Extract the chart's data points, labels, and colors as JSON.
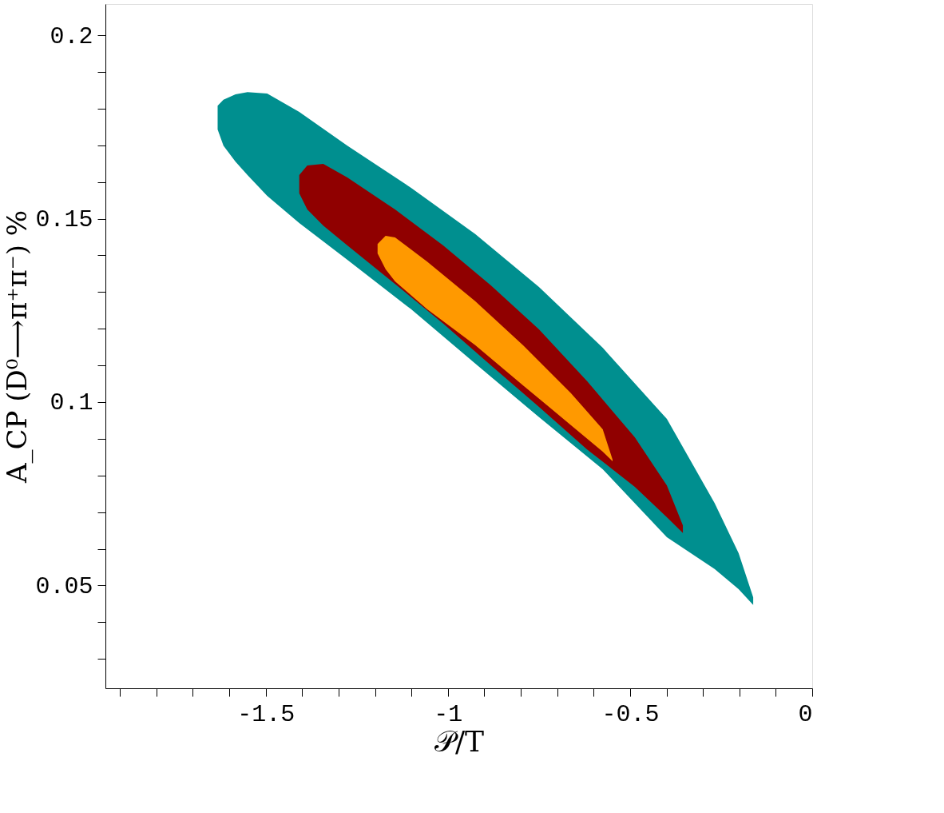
{
  "chart_data": {
    "type": "area",
    "xlabel": "𝒫/T",
    "ylabel": "A_CP (D⁰⟶π⁺π⁻) %",
    "xlim": [
      -1.94,
      0
    ],
    "ylim": [
      0.022,
      0.2085
    ],
    "xticks": [
      {
        "value": -1.9,
        "label": null
      },
      {
        "value": -1.8,
        "label": null
      },
      {
        "value": -1.7,
        "label": null
      },
      {
        "value": -1.6,
        "label": null
      },
      -1.5,
      {
        "value": -1.4,
        "label": null
      },
      {
        "value": -1.3,
        "label": null
      },
      {
        "value": -1.2,
        "label": null
      },
      {
        "value": -1.1,
        "label": null
      },
      -1,
      {
        "value": -0.9,
        "label": null
      },
      {
        "value": -0.8,
        "label": null
      },
      {
        "value": -0.7,
        "label": null
      },
      {
        "value": -0.6,
        "label": null
      },
      -0.5,
      {
        "value": -0.4,
        "label": null
      },
      {
        "value": -0.3,
        "label": null
      },
      {
        "value": -0.2,
        "label": null
      },
      {
        "value": -0.1,
        "label": null
      },
      0
    ],
    "yticks": [
      {
        "value": 0.03,
        "label": null
      },
      {
        "value": 0.04,
        "label": null
      },
      0.05,
      {
        "value": 0.06,
        "label": null
      },
      {
        "value": 0.07,
        "label": null
      },
      {
        "value": 0.08,
        "label": null
      },
      {
        "value": 0.09,
        "label": null
      },
      0.1,
      {
        "value": 0.11,
        "label": null
      },
      {
        "value": 0.12,
        "label": null
      },
      {
        "value": 0.13,
        "label": null
      },
      {
        "value": 0.14,
        "label": null
      },
      0.15,
      {
        "value": 0.16,
        "label": null
      },
      {
        "value": 0.17,
        "label": null
      },
      {
        "value": 0.18,
        "label": null
      },
      {
        "value": 0.19,
        "label": null
      },
      0.2
    ],
    "grid": false,
    "legend": false,
    "series": [
      {
        "color": "#008f8f",
        "x": [
          -1.632,
          -1.616,
          -1.583,
          -1.55,
          -1.496,
          -1.408,
          -1.276,
          -1.101,
          -0.925,
          -0.75,
          -0.575,
          -0.399,
          -0.268,
          -0.202,
          -0.162,
          -0.162,
          -0.202,
          -0.268,
          -0.399,
          -0.575,
          -0.75,
          -0.925,
          -1.101,
          -1.276,
          -1.408,
          -1.496,
          -1.55,
          -1.583,
          -1.616,
          -1.632
        ],
        "values": [
          0.1808,
          0.1824,
          0.1839,
          0.1845,
          0.1841,
          0.1791,
          0.1699,
          0.1584,
          0.1458,
          0.1314,
          0.1148,
          0.0954,
          0.0725,
          0.0588,
          0.0468,
          0.0447,
          0.049,
          0.0545,
          0.0632,
          0.0817,
          0.0959,
          0.1105,
          0.1253,
          0.1388,
          0.1488,
          0.1562,
          0.1619,
          0.1655,
          0.1699,
          0.1743
        ]
      },
      {
        "color": "#900000",
        "x": [
          -1.408,
          -1.386,
          -1.342,
          -1.276,
          -1.145,
          -1.013,
          -0.882,
          -0.75,
          -0.618,
          -0.487,
          -0.399,
          -0.355,
          -0.355,
          -0.399,
          -0.487,
          -0.618,
          -0.75,
          -0.882,
          -1.013,
          -1.145,
          -1.276,
          -1.342,
          -1.386,
          -1.408
        ],
        "values": [
          0.1619,
          0.1645,
          0.1649,
          0.1612,
          0.1525,
          0.1427,
          0.1318,
          0.1198,
          0.1057,
          0.0904,
          0.0773,
          0.0664,
          0.0643,
          0.0686,
          0.0769,
          0.0871,
          0.0987,
          0.11,
          0.1214,
          0.1322,
          0.1427,
          0.1481,
          0.1525,
          0.1569
        ]
      },
      {
        "color": "#ff9900",
        "x": [
          -1.193,
          -1.171,
          -1.145,
          -1.057,
          -0.925,
          -0.794,
          -0.662,
          -0.575,
          -0.548,
          -0.548,
          -0.575,
          -0.662,
          -0.794,
          -0.925,
          -1.057,
          -1.145,
          -1.171,
          -1.193
        ],
        "values": [
          0.1431,
          0.1453,
          0.1449,
          0.1383,
          0.1275,
          0.1155,
          0.1024,
          0.0926,
          0.0843,
          0.0839,
          0.0865,
          0.0937,
          0.1046,
          0.1155,
          0.1253,
          0.1329,
          0.1362,
          0.1405
        ]
      }
    ]
  }
}
